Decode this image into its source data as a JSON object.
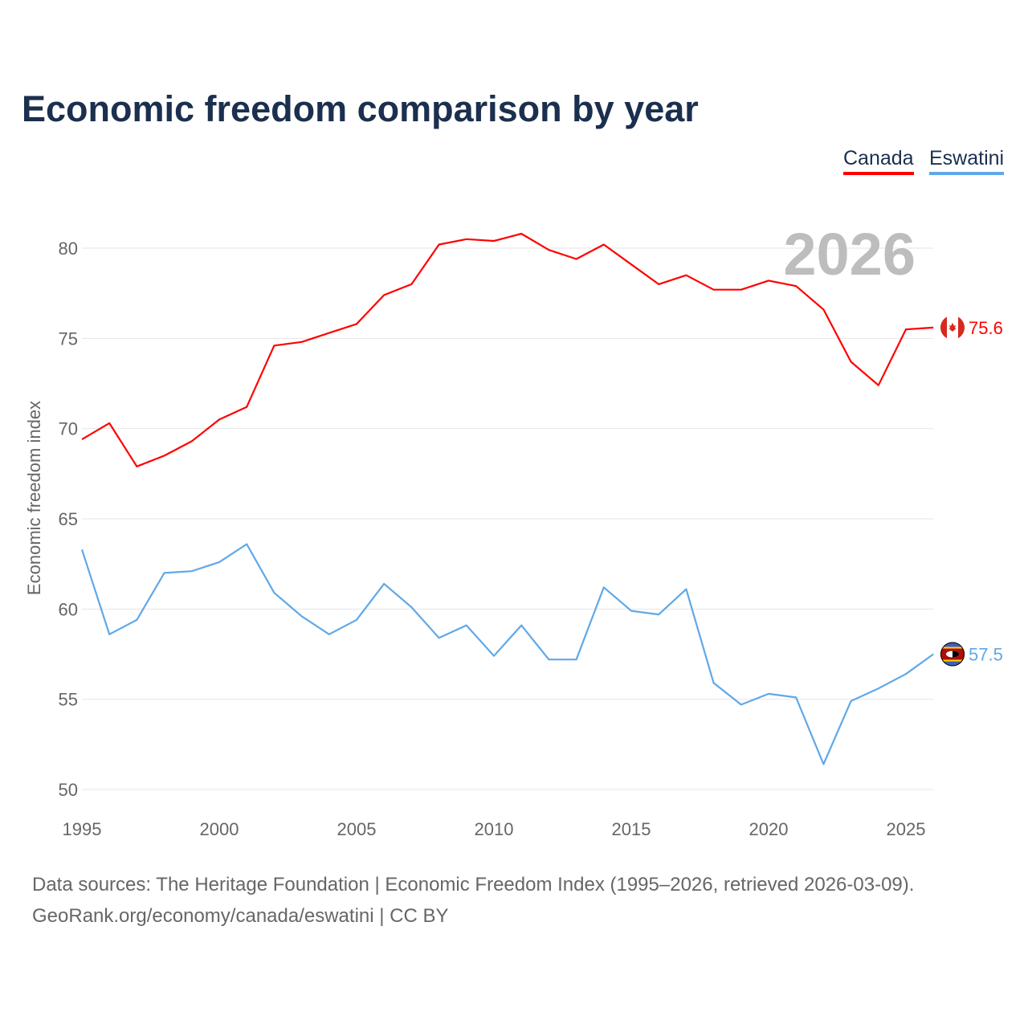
{
  "chart_data": {
    "type": "line",
    "title": "Economic freedom comparison by year",
    "xlabel": "",
    "ylabel": "Economic freedom index",
    "xlim": [
      1995,
      2026
    ],
    "ylim": [
      50,
      82
    ],
    "yticks": [
      50,
      55,
      60,
      65,
      70,
      75,
      80
    ],
    "xticks": [
      1995,
      2000,
      2005,
      2010,
      2015,
      2020,
      2025
    ],
    "grid": true,
    "legend": "top-right",
    "watermark_year": "2026",
    "x": [
      1995,
      1996,
      1997,
      1998,
      1999,
      2000,
      2001,
      2002,
      2003,
      2004,
      2005,
      2006,
      2007,
      2008,
      2009,
      2010,
      2011,
      2012,
      2013,
      2014,
      2015,
      2016,
      2017,
      2018,
      2019,
      2020,
      2021,
      2022,
      2023,
      2024,
      2025,
      2026
    ],
    "series": [
      {
        "name": "Canada",
        "color": "#ff0000",
        "end_label": "75.6",
        "flag": "canada-flag",
        "values": [
          69.4,
          70.3,
          67.9,
          68.5,
          69.3,
          70.5,
          71.2,
          74.6,
          74.8,
          75.3,
          75.8,
          77.4,
          78.0,
          80.2,
          80.5,
          80.4,
          80.8,
          79.9,
          79.4,
          80.2,
          79.1,
          78.0,
          78.5,
          77.7,
          77.7,
          78.2,
          77.9,
          76.6,
          73.7,
          72.4,
          75.5,
          75.6
        ]
      },
      {
        "name": "Eswatini",
        "color": "#5fa8e8",
        "end_label": "57.5",
        "flag": "eswatini-flag",
        "values": [
          63.3,
          58.6,
          59.4,
          62.0,
          62.1,
          62.6,
          63.6,
          60.9,
          59.6,
          58.6,
          59.4,
          61.4,
          60.1,
          58.4,
          59.1,
          57.4,
          59.1,
          57.2,
          57.2,
          61.2,
          59.9,
          59.7,
          61.1,
          55.9,
          54.7,
          55.3,
          55.1,
          51.4,
          54.9,
          55.6,
          56.4,
          57.5
        ]
      }
    ]
  },
  "footer": {
    "line1": "Data sources: The Heritage Foundation | Economic Freedom Index (1995–2026, retrieved 2026-03-09).",
    "line2": "GeoRank.org/economy/canada/eswatini | CC BY"
  }
}
